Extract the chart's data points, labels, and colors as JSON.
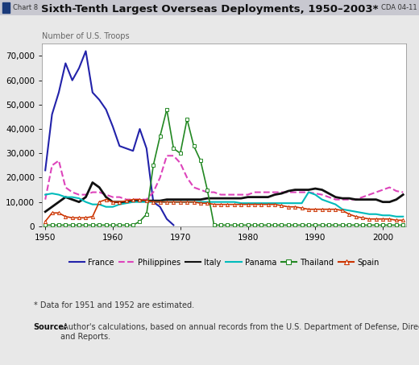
{
  "title": "Sixth-Tenth Largest Overseas Deployments, 1950–2003*",
  "ylabel": "Number of U.S. Troops",
  "ylim": [
    0,
    75000
  ],
  "yticks": [
    0,
    10000,
    20000,
    30000,
    40000,
    50000,
    60000,
    70000
  ],
  "xlim": [
    1949.5,
    2003.5
  ],
  "xticks": [
    1950,
    1960,
    1970,
    1980,
    1990,
    2000
  ],
  "footnote1": "* Data for 1951 and 1952 are estimated.",
  "footnote2_bold": "Source:",
  "footnote2_rest": " Author's calculations, based on annual records from the U.S. Department of Defense, Directorate for Information Operations\nand Reports.",
  "header_left": "Chart 8",
  "header_right": "CDA 04-11",
  "series": {
    "France": {
      "color": "#2222aa",
      "linestyle": "-",
      "marker": null,
      "linewidth": 1.5,
      "years": [
        1950,
        1951,
        1952,
        1953,
        1954,
        1955,
        1956,
        1957,
        1958,
        1959,
        1960,
        1961,
        1962,
        1963,
        1964,
        1965,
        1966,
        1967,
        1968,
        1969
      ],
      "values": [
        23000,
        46000,
        55000,
        67000,
        60000,
        65000,
        72000,
        55000,
        52000,
        48000,
        41000,
        33000,
        32000,
        31000,
        40000,
        32000,
        10000,
        8000,
        3000,
        500
      ]
    },
    "Philippines": {
      "color": "#dd44bb",
      "linestyle": "--",
      "marker": null,
      "linewidth": 1.5,
      "years": [
        1950,
        1951,
        1952,
        1953,
        1954,
        1955,
        1956,
        1957,
        1958,
        1959,
        1960,
        1961,
        1962,
        1963,
        1964,
        1965,
        1966,
        1967,
        1968,
        1969,
        1970,
        1971,
        1972,
        1973,
        1974,
        1975,
        1976,
        1977,
        1978,
        1979,
        1980,
        1981,
        1982,
        1983,
        1984,
        1985,
        1986,
        1987,
        1988,
        1989,
        1990,
        1991,
        1992,
        1993,
        1994,
        1995,
        1996,
        1997,
        1998,
        1999,
        2000,
        2001,
        2002,
        2003
      ],
      "values": [
        11000,
        25000,
        27000,
        16000,
        14000,
        13000,
        13000,
        14000,
        14000,
        13000,
        12000,
        12000,
        11000,
        11000,
        11000,
        11000,
        14000,
        20000,
        29000,
        29000,
        26000,
        20000,
        16000,
        15000,
        14000,
        14000,
        13000,
        13000,
        13000,
        13000,
        13000,
        14000,
        14000,
        14000,
        14000,
        14000,
        14000,
        14000,
        14000,
        14000,
        13500,
        13000,
        12000,
        11000,
        11000,
        11000,
        11000,
        12000,
        13000,
        14000,
        15000,
        16000,
        14500,
        14000
      ]
    },
    "Italy": {
      "color": "#111111",
      "linestyle": "-",
      "marker": null,
      "linewidth": 2.0,
      "years": [
        1950,
        1951,
        1952,
        1953,
        1954,
        1955,
        1956,
        1957,
        1958,
        1959,
        1960,
        1961,
        1962,
        1963,
        1964,
        1965,
        1966,
        1967,
        1968,
        1969,
        1970,
        1971,
        1972,
        1973,
        1974,
        1975,
        1976,
        1977,
        1978,
        1979,
        1980,
        1981,
        1982,
        1983,
        1984,
        1985,
        1986,
        1987,
        1988,
        1989,
        1990,
        1991,
        1992,
        1993,
        1994,
        1995,
        1996,
        1997,
        1998,
        1999,
        2000,
        2001,
        2002,
        2003
      ],
      "values": [
        6000,
        8000,
        10000,
        12000,
        11000,
        10000,
        12000,
        18000,
        16000,
        12000,
        10000,
        10000,
        10000,
        10500,
        10500,
        10500,
        10500,
        10500,
        11000,
        11000,
        11000,
        11000,
        11000,
        11000,
        11500,
        11500,
        11500,
        11500,
        11500,
        11500,
        12000,
        12000,
        12000,
        12000,
        13000,
        13500,
        14500,
        15000,
        15000,
        15000,
        15500,
        15000,
        13500,
        12000,
        11500,
        11500,
        11000,
        11000,
        11000,
        11000,
        10000,
        10000,
        11000,
        13000
      ]
    },
    "Panama": {
      "color": "#00bbbb",
      "linestyle": "-",
      "marker": null,
      "linewidth": 1.5,
      "years": [
        1950,
        1951,
        1952,
        1953,
        1954,
        1955,
        1956,
        1957,
        1958,
        1959,
        1960,
        1961,
        1962,
        1963,
        1964,
        1965,
        1966,
        1967,
        1968,
        1969,
        1970,
        1971,
        1972,
        1973,
        1974,
        1975,
        1976,
        1977,
        1978,
        1979,
        1980,
        1981,
        1982,
        1983,
        1984,
        1985,
        1986,
        1987,
        1988,
        1989,
        1990,
        1991,
        1992,
        1993,
        1994,
        1995,
        1996,
        1997,
        1998,
        1999,
        2000,
        2001,
        2002,
        2003
      ],
      "values": [
        13000,
        13500,
        13000,
        12000,
        12000,
        11500,
        10000,
        9000,
        9000,
        8000,
        8000,
        9000,
        9500,
        10000,
        10000,
        10000,
        10000,
        10000,
        10000,
        10000,
        10000,
        10000,
        10000,
        10000,
        10000,
        10000,
        10000,
        10000,
        10000,
        9500,
        9500,
        9500,
        9500,
        9500,
        9500,
        9500,
        9500,
        9500,
        9500,
        14000,
        13000,
        11000,
        10000,
        9000,
        7000,
        6500,
        6000,
        5500,
        5000,
        5000,
        4500,
        4500,
        4000,
        4000
      ]
    },
    "Thailand": {
      "color": "#228822",
      "linestyle": "-",
      "marker": "s",
      "markersize": 3,
      "linewidth": 1.2,
      "markerfacecolor": "white",
      "markeredgecolor": "#228822",
      "years": [
        1950,
        1951,
        1952,
        1953,
        1954,
        1955,
        1956,
        1957,
        1958,
        1959,
        1960,
        1961,
        1962,
        1963,
        1964,
        1965,
        1966,
        1967,
        1968,
        1969,
        1970,
        1971,
        1972,
        1973,
        1974,
        1975,
        1976,
        1977,
        1978,
        1979,
        1980,
        1981,
        1982,
        1983,
        1984,
        1985,
        1986,
        1987,
        1988,
        1989,
        1990,
        1991,
        1992,
        1993,
        1994,
        1995,
        1996,
        1997,
        1998,
        1999,
        2000,
        2001,
        2002,
        2003
      ],
      "values": [
        500,
        500,
        500,
        500,
        500,
        500,
        500,
        500,
        500,
        500,
        500,
        500,
        500,
        500,
        2000,
        5000,
        25000,
        37000,
        48000,
        32000,
        30000,
        44000,
        33000,
        27000,
        15000,
        500,
        500,
        500,
        500,
        500,
        500,
        500,
        500,
        500,
        500,
        500,
        500,
        500,
        500,
        500,
        500,
        500,
        500,
        500,
        500,
        500,
        500,
        500,
        500,
        500,
        500,
        500,
        500,
        500
      ]
    },
    "Spain": {
      "color": "#cc3300",
      "linestyle": "-",
      "marker": "^",
      "markersize": 3,
      "linewidth": 1.2,
      "markerfacecolor": "white",
      "markeredgecolor": "#cc3300",
      "years": [
        1950,
        1951,
        1952,
        1953,
        1954,
        1955,
        1956,
        1957,
        1958,
        1959,
        1960,
        1961,
        1962,
        1963,
        1964,
        1965,
        1966,
        1967,
        1968,
        1969,
        1970,
        1971,
        1972,
        1973,
        1974,
        1975,
        1976,
        1977,
        1978,
        1979,
        1980,
        1981,
        1982,
        1983,
        1984,
        1985,
        1986,
        1987,
        1988,
        1989,
        1990,
        1991,
        1992,
        1993,
        1994,
        1995,
        1996,
        1997,
        1998,
        1999,
        2000,
        2001,
        2002,
        2003
      ],
      "values": [
        2000,
        5500,
        5500,
        4000,
        3500,
        3500,
        3500,
        4000,
        10000,
        11000,
        10000,
        10000,
        10500,
        11000,
        11000,
        10500,
        10000,
        10000,
        10000,
        10000,
        10000,
        10000,
        10000,
        9500,
        9500,
        9000,
        9000,
        9000,
        9000,
        9000,
        9000,
        9000,
        9000,
        9000,
        9000,
        8500,
        8000,
        8000,
        7500,
        7000,
        7000,
        7000,
        7000,
        7000,
        6500,
        5000,
        4000,
        3500,
        3000,
        3000,
        3000,
        3000,
        2500,
        2500
      ]
    }
  }
}
